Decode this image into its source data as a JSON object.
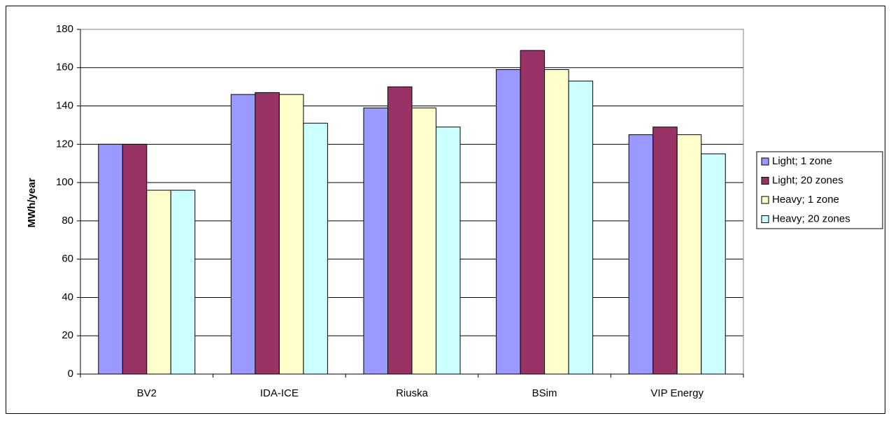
{
  "chart_data": {
    "type": "bar",
    "y_label": "MWh/year",
    "categories": [
      "BV2",
      "IDA-ICE",
      "Riuska",
      "BSim",
      "VIP Energy"
    ],
    "series": [
      {
        "name": "Light; 1 zone",
        "color": "#9999ff",
        "values": [
          120,
          146,
          139,
          159,
          125
        ]
      },
      {
        "name": "Light; 20 zones",
        "color": "#993366",
        "values": [
          120,
          147,
          150,
          169,
          129
        ]
      },
      {
        "name": "Heavy; 1 zone",
        "color": "#ffffcc",
        "values": [
          96,
          146,
          139,
          159,
          125
        ]
      },
      {
        "name": "Heavy; 20 zones",
        "color": "#ccffff",
        "values": [
          96,
          131,
          129,
          153,
          115
        ]
      }
    ],
    "ylim": [
      0,
      180
    ],
    "yticks": [
      0,
      20,
      40,
      60,
      80,
      100,
      120,
      140,
      160,
      180
    ],
    "grid": true,
    "legend": "right"
  }
}
